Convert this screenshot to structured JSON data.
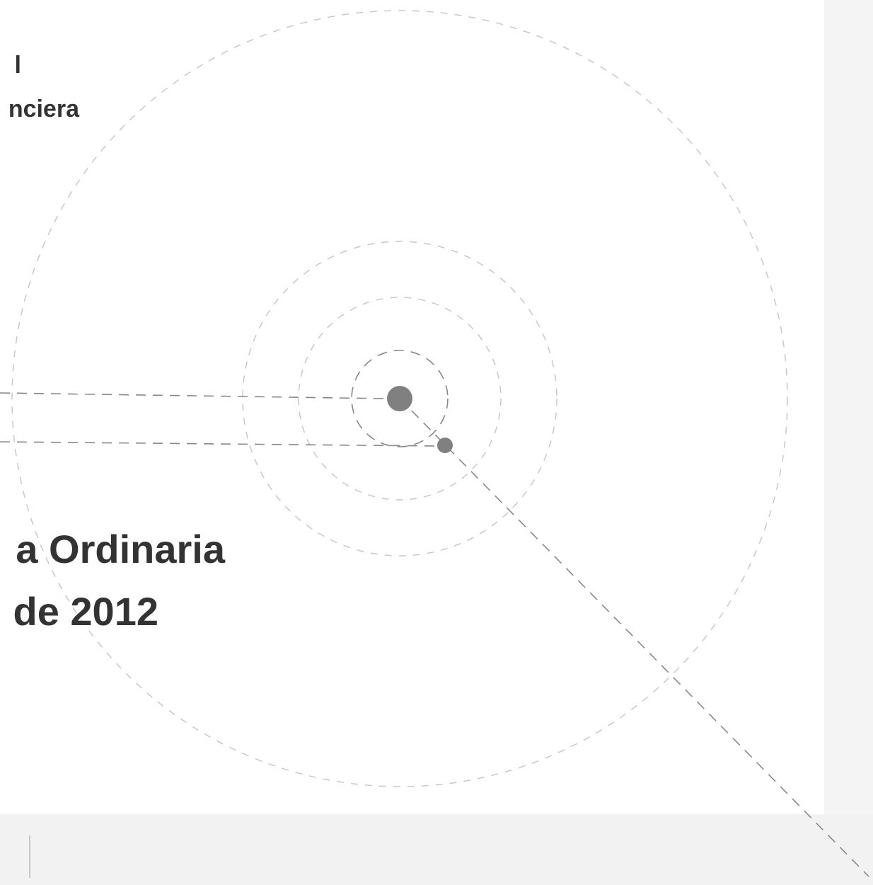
{
  "header": {
    "line1": "l",
    "line2": "nciera"
  },
  "title": {
    "line1": "a Ordinaria",
    "line2": "de 2012"
  }
}
